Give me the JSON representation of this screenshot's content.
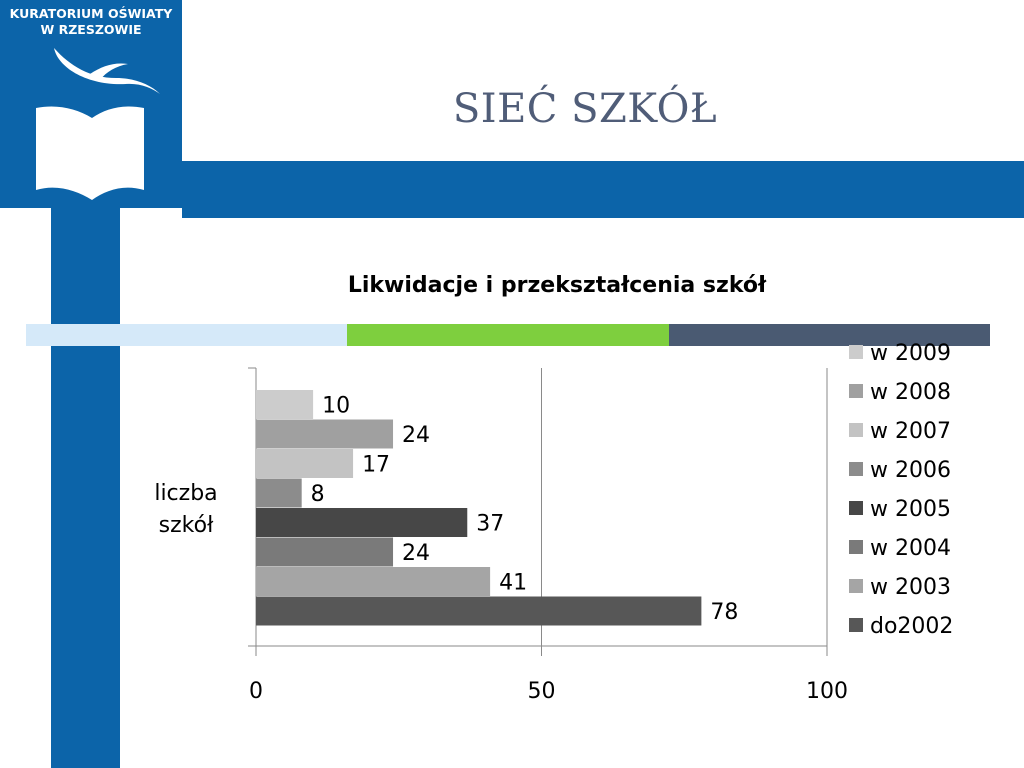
{
  "header": {
    "org_lines": [
      "KURATORIUM OŚWIATY",
      "W RZESZOWIE"
    ],
    "logo_icon": "book-bird-icon",
    "slide_title": "SIEĆ SZKÓŁ"
  },
  "colors": {
    "brand_blue": "#0c64a9",
    "title_gray": "#505d78",
    "strip": [
      "#d5e9f9",
      "#7ecf3e",
      "#4a5a72"
    ]
  },
  "chart_data": {
    "type": "bar",
    "orientation": "horizontal",
    "title": "Likwidacje i przekształcenia szkół",
    "category_label": "liczba szkół",
    "xlim": [
      0,
      100
    ],
    "x_ticks": [
      0,
      50,
      100
    ],
    "grid": true,
    "legend_position": "right",
    "series": [
      {
        "name": "w 2009",
        "value": 10,
        "color": "#cccccc"
      },
      {
        "name": "w 2008",
        "value": 24,
        "color": "#a0a0a0"
      },
      {
        "name": "w 2007",
        "value": 17,
        "color": "#c3c3c3"
      },
      {
        "name": "w 2006",
        "value": 8,
        "color": "#8c8c8c"
      },
      {
        "name": "w 2005",
        "value": 37,
        "color": "#474747"
      },
      {
        "name": "w 2004",
        "value": 24,
        "color": "#7a7a7a"
      },
      {
        "name": "w 2003",
        "value": 41,
        "color": "#a5a5a5"
      },
      {
        "name": "do2002",
        "value": 78,
        "color": "#575757"
      }
    ]
  }
}
